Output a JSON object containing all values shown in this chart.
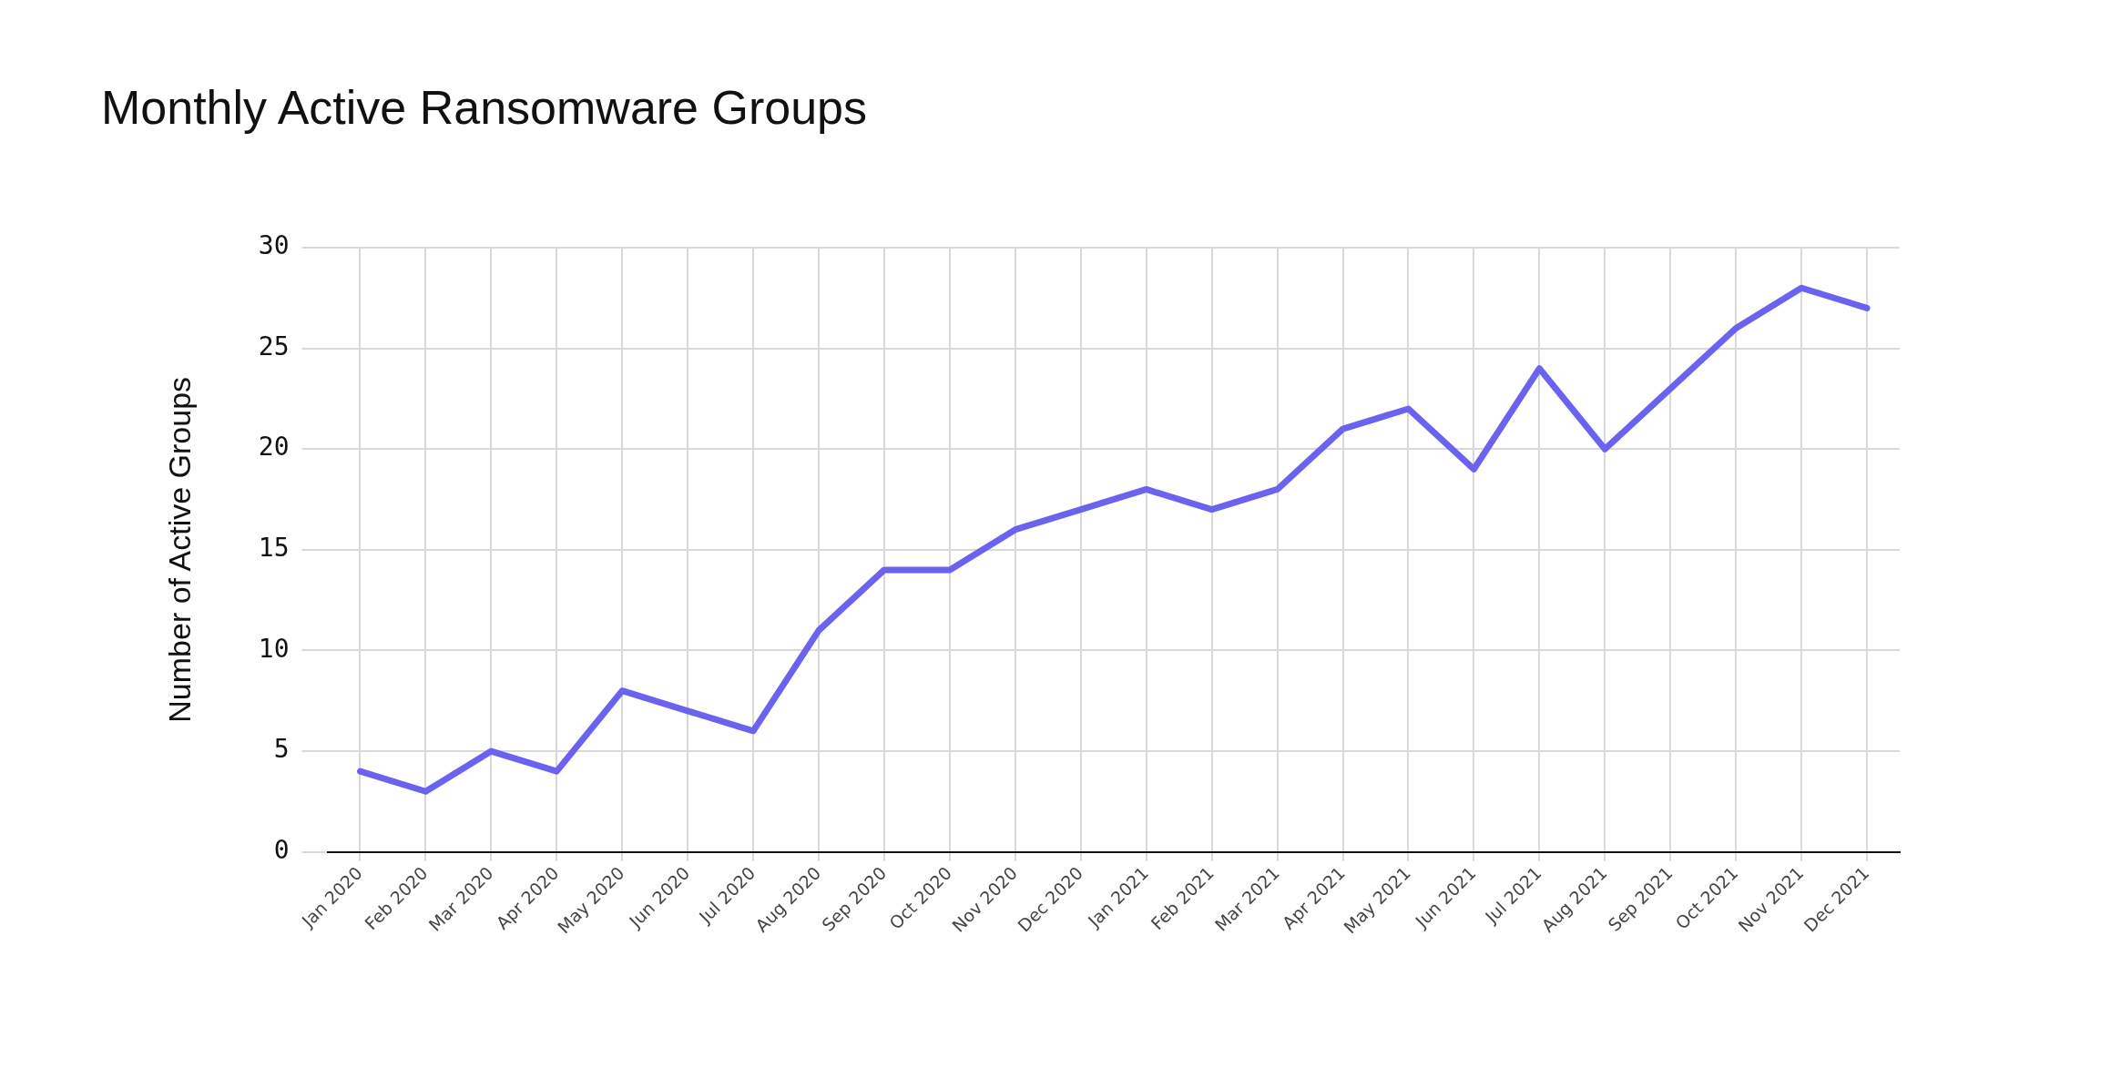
{
  "chart_data": {
    "type": "line",
    "title": "Monthly Active Ransomware Groups",
    "ylabel": "Number of Active Groups",
    "categories": [
      "Jan 2020",
      "Feb 2020",
      "Mar 2020",
      "Apr 2020",
      "May 2020",
      "Jun 2020",
      "Jul 2020",
      "Aug 2020",
      "Sep 2020",
      "Oct 2020",
      "Nov 2020",
      "Dec 2020",
      "Jan 2021",
      "Feb 2021",
      "Mar 2021",
      "Apr 2021",
      "May 2021",
      "Jun 2021",
      "Jul 2021",
      "Aug 2021",
      "Sep 2021",
      "Oct 2021",
      "Nov 2021",
      "Dec 2021"
    ],
    "series": [
      {
        "color": "#6b63f0",
        "values": [
          4,
          3,
          5,
          4,
          8,
          7,
          6,
          11,
          14,
          14,
          16,
          17,
          18,
          17,
          18,
          21,
          22,
          19,
          24,
          20,
          23,
          26,
          28,
          27
        ]
      }
    ],
    "ylim": [
      0,
      30
    ],
    "yticks": [
      0,
      5,
      10,
      15,
      20,
      25,
      30
    ],
    "grid": true,
    "legend": false,
    "marker": "none",
    "line_style": "solid"
  }
}
